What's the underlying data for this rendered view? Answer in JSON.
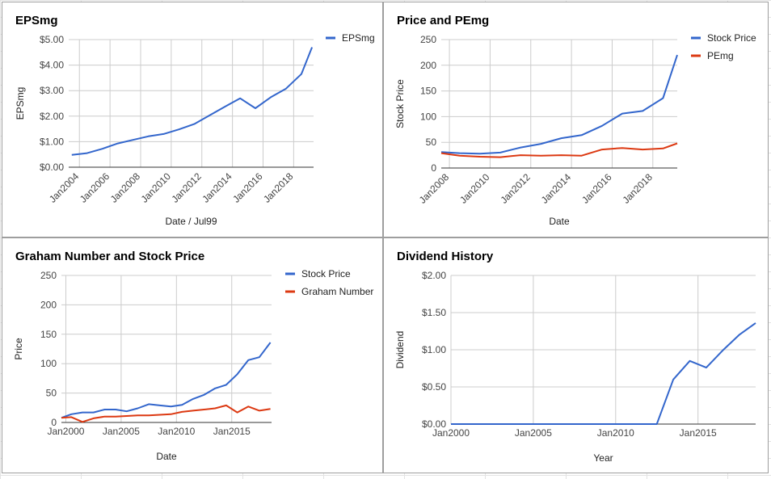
{
  "colors": {
    "blue": "#3366cc",
    "red": "#dc3912"
  },
  "chart_data": [
    {
      "type": "line",
      "title": "EPSmg",
      "xlabel": "Date / Jul99",
      "ylabel": "EPSmg",
      "xlim": [
        2003.3,
        2019.3
      ],
      "ylim": [
        0,
        5
      ],
      "xticks": [
        {
          "v": 2004,
          "label": "Jan2004"
        },
        {
          "v": 2006,
          "label": "Jan2006"
        },
        {
          "v": 2008,
          "label": "Jan2008"
        },
        {
          "v": 2010,
          "label": "Jan2010"
        },
        {
          "v": 2012,
          "label": "Jan2012"
        },
        {
          "v": 2014,
          "label": "Jan2014"
        },
        {
          "v": 2016,
          "label": "Jan2016"
        },
        {
          "v": 2018,
          "label": "Jan2018"
        }
      ],
      "yticks": [
        {
          "v": 0,
          "label": "$0.00"
        },
        {
          "v": 1,
          "label": "$1.00"
        },
        {
          "v": 2,
          "label": "$2.00"
        },
        {
          "v": 3,
          "label": "$3.00"
        },
        {
          "v": 4,
          "label": "$4.00"
        },
        {
          "v": 5,
          "label": "$5.00"
        }
      ],
      "grid": true,
      "legend": "right",
      "series": [
        {
          "name": "EPSmg",
          "color": "#3366cc",
          "x": [
            2003.5,
            2004.5,
            2005.5,
            2006.5,
            2007.5,
            2008.5,
            2009.5,
            2010.5,
            2011.5,
            2012.5,
            2013.5,
            2014.5,
            2015.5,
            2016.5,
            2017.5,
            2018.5,
            2019.2
          ],
          "y": [
            0.48,
            0.55,
            0.72,
            0.93,
            1.07,
            1.21,
            1.3,
            1.48,
            1.69,
            2.03,
            2.37,
            2.7,
            2.31,
            2.74,
            3.08,
            3.65,
            4.7
          ]
        }
      ]
    },
    {
      "type": "line",
      "title": "Price and PEmg",
      "xlabel": "Date",
      "ylabel": "Stock Price",
      "xlim": [
        2007.6,
        2019.2
      ],
      "ylim": [
        0,
        250
      ],
      "xticks": [
        {
          "v": 2008,
          "label": "Jan2008"
        },
        {
          "v": 2010,
          "label": "Jan2010"
        },
        {
          "v": 2012,
          "label": "Jan2012"
        },
        {
          "v": 2014,
          "label": "Jan2014"
        },
        {
          "v": 2016,
          "label": "Jan2016"
        },
        {
          "v": 2018,
          "label": "Jan2018"
        }
      ],
      "yticks": [
        {
          "v": 0,
          "label": "0"
        },
        {
          "v": 50,
          "label": "50"
        },
        {
          "v": 100,
          "label": "100"
        },
        {
          "v": 150,
          "label": "150"
        },
        {
          "v": 200,
          "label": "200"
        },
        {
          "v": 250,
          "label": "250"
        }
      ],
      "grid": true,
      "legend": "right",
      "series": [
        {
          "name": "Stock Price",
          "color": "#3366cc",
          "x": [
            2007.6,
            2008.5,
            2009.5,
            2010.5,
            2011.5,
            2012.5,
            2013.5,
            2014.5,
            2015.5,
            2016.5,
            2017.5,
            2018.5,
            2019.2
          ],
          "y": [
            31,
            29,
            28,
            30,
            40,
            47,
            58,
            64,
            82,
            106,
            111,
            136,
            220
          ]
        },
        {
          "name": "PEmg",
          "color": "#dc3912",
          "x": [
            2007.6,
            2008.5,
            2009.5,
            2010.5,
            2011.5,
            2012.5,
            2013.5,
            2014.5,
            2015.5,
            2016.5,
            2017.5,
            2018.5,
            2019.2
          ],
          "y": [
            29,
            24,
            22,
            21,
            25,
            24,
            25,
            24,
            36,
            39,
            36,
            38,
            48
          ]
        }
      ]
    },
    {
      "type": "line",
      "title": "Graham Number and Stock Price",
      "xlabel": "Date",
      "ylabel": "Price",
      "xlim": [
        1999.6,
        2018.6
      ],
      "ylim": [
        0,
        250
      ],
      "xticks": [
        {
          "v": 2000,
          "label": "Jan2000"
        },
        {
          "v": 2005,
          "label": "Jan2005"
        },
        {
          "v": 2010,
          "label": "Jan2010"
        },
        {
          "v": 2015,
          "label": "Jan2015"
        }
      ],
      "yticks": [
        {
          "v": 0,
          "label": "0"
        },
        {
          "v": 50,
          "label": "50"
        },
        {
          "v": 100,
          "label": "100"
        },
        {
          "v": 150,
          "label": "150"
        },
        {
          "v": 200,
          "label": "200"
        },
        {
          "v": 250,
          "label": "250"
        }
      ],
      "grid": true,
      "legend": "right",
      "series": [
        {
          "name": "Stock Price",
          "color": "#3366cc",
          "x": [
            1999.6,
            2000.5,
            2001.5,
            2002.5,
            2003.5,
            2004.5,
            2005.5,
            2006.5,
            2007.5,
            2008.5,
            2009.5,
            2010.5,
            2011.5,
            2012.5,
            2013.5,
            2014.5,
            2015.5,
            2016.5,
            2017.5,
            2018.5
          ],
          "y": [
            8,
            14,
            17,
            17,
            22,
            22,
            19,
            24,
            31,
            29,
            27,
            30,
            40,
            47,
            58,
            64,
            82,
            106,
            111,
            136
          ]
        },
        {
          "name": "Graham Number",
          "color": "#dc3912",
          "x": [
            1999.6,
            2000.5,
            2001.5,
            2002.5,
            2003.5,
            2004.5,
            2005.5,
            2006.5,
            2007.5,
            2008.5,
            2009.5,
            2010.5,
            2011.5,
            2012.5,
            2013.5,
            2014.5,
            2015.5,
            2016.5,
            2017.5,
            2018.5
          ],
          "y": [
            8,
            9,
            1,
            7,
            10,
            10,
            11,
            12,
            12,
            13,
            14,
            18,
            20,
            22,
            24,
            29,
            17,
            27,
            20,
            23
          ]
        }
      ]
    },
    {
      "type": "line",
      "title": "Dividend History",
      "xlabel": "Year",
      "ylabel": "Dividend",
      "xlim": [
        2000,
        2018.5
      ],
      "ylim": [
        0,
        2
      ],
      "xticks": [
        {
          "v": 2000,
          "label": "Jan2000"
        },
        {
          "v": 2005,
          "label": "Jan2005"
        },
        {
          "v": 2010,
          "label": "Jan2010"
        },
        {
          "v": 2015,
          "label": "Jan2015"
        }
      ],
      "yticks": [
        {
          "v": 0,
          "label": "$0.00"
        },
        {
          "v": 0.5,
          "label": "$0.50"
        },
        {
          "v": 1,
          "label": "$1.00"
        },
        {
          "v": 1.5,
          "label": "$1.50"
        },
        {
          "v": 2,
          "label": "$2.00"
        }
      ],
      "grid": true,
      "legend": "none",
      "series": [
        {
          "name": "",
          "color": "#3366cc",
          "x": [
            2000,
            2012.5,
            2013.5,
            2014.5,
            2015.5,
            2016.5,
            2017.5,
            2018.5
          ],
          "y": [
            0,
            0,
            0.6,
            0.85,
            0.76,
            0.99,
            1.2,
            1.36
          ]
        }
      ]
    }
  ]
}
